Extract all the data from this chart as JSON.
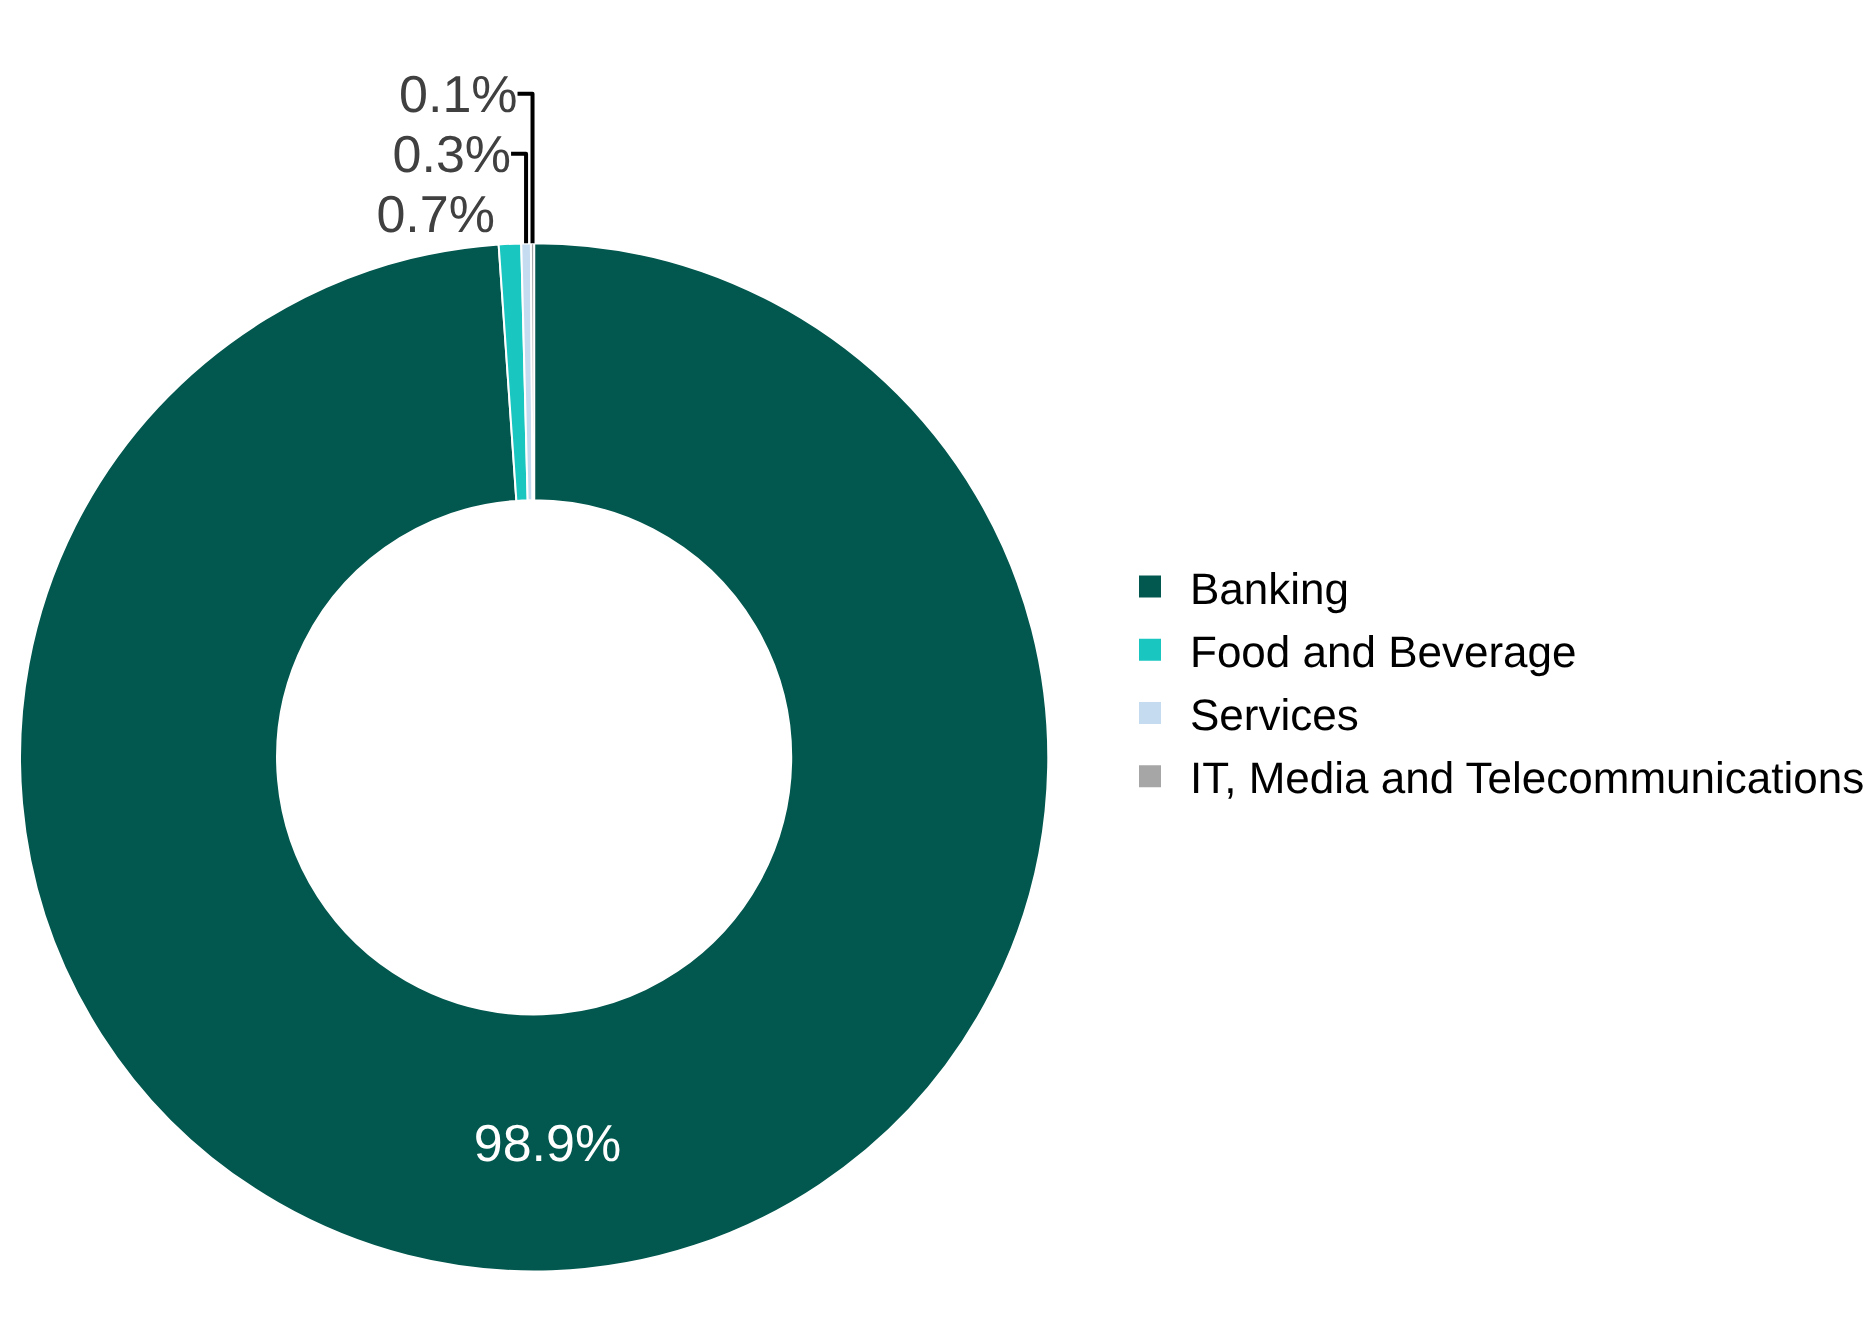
{
  "chart_data": {
    "type": "donut",
    "categories": [
      "Banking",
      "Food and Beverage",
      "Services",
      "IT, Media and Telecommunications"
    ],
    "values": [
      98.9,
      0.7,
      0.3,
      0.1
    ],
    "colors": [
      "#02574e",
      "#19c6c0",
      "#c5dcf0",
      "#a6a6a6"
    ],
    "value_labels": [
      "98.9%",
      "0.7%",
      "0.3%",
      "0.1%"
    ],
    "legend": "right"
  }
}
